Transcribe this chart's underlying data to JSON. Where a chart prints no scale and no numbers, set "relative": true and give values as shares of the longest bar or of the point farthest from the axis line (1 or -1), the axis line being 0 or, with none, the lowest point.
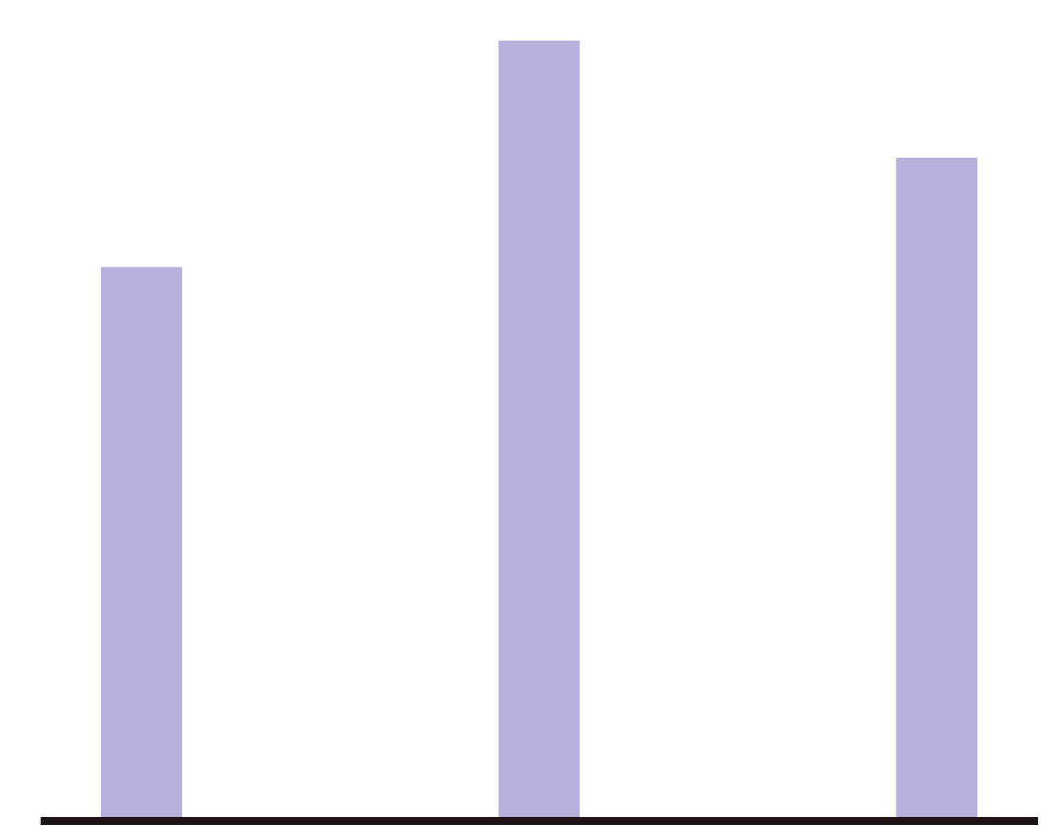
{
  "chart_data": {
    "type": "bar",
    "categories": [
      null,
      null,
      null
    ],
    "values": [
      0.71,
      1,
      0.85
    ],
    "color": "#b6b0dc",
    "relative": true
  }
}
